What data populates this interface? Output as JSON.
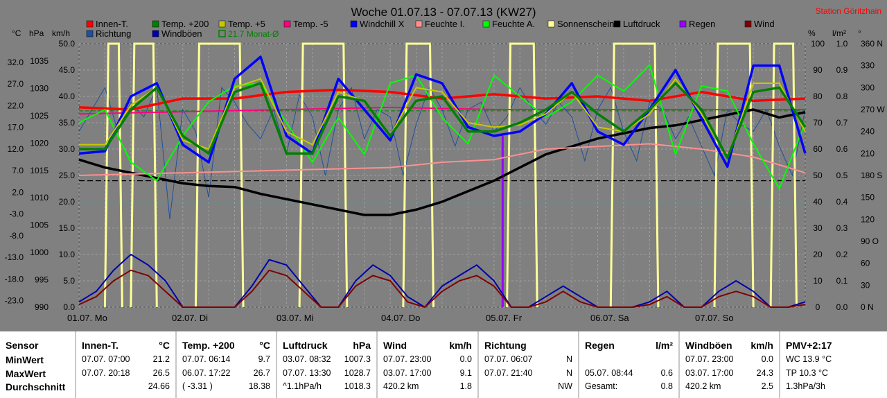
{
  "title": "Woche 01.07.13 - 07.07.13 (KW27)",
  "station": "Station Göritzhain",
  "axis_units": {
    "temp": "°C",
    "hpa": "hPa",
    "kmh": "km/h",
    "pct": "%",
    "lm2": "l/m²",
    "deg": "°"
  },
  "legend": [
    {
      "label": "Innen-T.",
      "color": "#ff0000"
    },
    {
      "label": "Temp. +200",
      "color": "#008000"
    },
    {
      "label": "Temp. +5",
      "color": "#c8c800"
    },
    {
      "label": "Temp. -5",
      "color": "#ff0080"
    },
    {
      "label": "Windchill X",
      "color": "#0000ff"
    },
    {
      "label": "Feuchte I.",
      "color": "#ff9090"
    },
    {
      "label": "Feuchte A.",
      "color": "#00ff00"
    },
    {
      "label": "Sonnenschein",
      "color": "#ffff99"
    },
    {
      "label": "Luftdruck",
      "color": "#000000"
    },
    {
      "label": "Regen",
      "color": "#9900ff"
    },
    {
      "label": "Wind",
      "color": "#800000"
    },
    {
      "label": "Richtung",
      "color": "#1f4fa0"
    },
    {
      "label": "Windböen",
      "color": "#0000aa"
    },
    {
      "label": "21.7 Monat-Ø",
      "color": "#008000"
    }
  ],
  "chart_data": {
    "type": "line",
    "title": "Woche 01.07.13 - 07.07.13 (KW27)",
    "x_labels": [
      "01.07. Mo",
      "02.07. Di",
      "03.07. Mi",
      "04.07. Do",
      "05.07. Fr",
      "06.07. Sa",
      "07.07. So"
    ],
    "x_range_hours": [
      0,
      168
    ],
    "left_axes": {
      "temp": [
        "32.0",
        "27.0",
        "22.0",
        "17.0",
        "12.0",
        "7.0",
        "2.0",
        "-3.0",
        "-8.0",
        "-13.0",
        "-18.0",
        "-23.0"
      ],
      "hpa": [
        "1035",
        "1030",
        "1025",
        "1020",
        "1015",
        "1010",
        "1005",
        "1000",
        "995",
        "990"
      ],
      "kmh": [
        "50.0",
        "45.0",
        "40.0",
        "35.0",
        "30.0",
        "25.0",
        "20.0",
        "15.0",
        "10.0",
        "5.0",
        "0.0"
      ]
    },
    "right_axes": {
      "pct": [
        "100",
        "90",
        "80",
        "70",
        "60",
        "50",
        "40",
        "30",
        "20",
        "10",
        "0"
      ],
      "lm2": [
        "1.0",
        "0.9",
        "0.8",
        "0.7",
        "0.6",
        "0.5",
        "0.4",
        "0.3",
        "0.2",
        "0.1",
        "0.0"
      ],
      "deg": [
        "360 N",
        "330",
        "300",
        "270 W",
        "240",
        "210",
        "180 S",
        "150",
        "120",
        "90 O",
        "60",
        "30",
        "0 N"
      ]
    },
    "ylim_temp": [
      -23,
      37
    ],
    "ylim_hpa": [
      990,
      1040
    ],
    "ylim_kmh": [
      0,
      50
    ],
    "ylim_deg": [
      0,
      360
    ],
    "month_avg_temp": 21.7,
    "series": [
      {
        "name": "Innen-T.",
        "color": "#ff0000",
        "axis": "temp",
        "width": 3.5,
        "hours": [
          0,
          12,
          24,
          36,
          48,
          60,
          72,
          84,
          96,
          108,
          120,
          132,
          144,
          156,
          168
        ],
        "values": [
          22.5,
          22.0,
          24.5,
          24.5,
          26.0,
          26.5,
          26.0,
          24.5,
          25.5,
          24.5,
          25.0,
          24.0,
          26.0,
          24.0,
          24.5
        ]
      },
      {
        "name": "Temp. -5",
        "color": "#ff0080",
        "axis": "temp",
        "width": 2,
        "hours": [
          0,
          24,
          48,
          72,
          96,
          120,
          144,
          168
        ],
        "values": [
          21.0,
          21.5,
          22.0,
          22.5,
          22.0,
          22.0,
          22.0,
          22.0
        ]
      },
      {
        "name": "Luftdruck",
        "color": "#000000",
        "axis": "hpa",
        "width": 3.5,
        "hours": [
          0,
          6,
          12,
          18,
          24,
          30,
          36,
          42,
          48,
          54,
          60,
          66,
          72,
          78,
          84,
          90,
          96,
          102,
          108,
          114,
          120,
          126,
          132,
          138,
          144,
          150,
          156,
          162,
          168
        ],
        "values": [
          1018.0,
          1016.5,
          1015.5,
          1014.5,
          1013.5,
          1013.0,
          1012.8,
          1011.5,
          1010.5,
          1009.5,
          1008.5,
          1007.5,
          1007.5,
          1008.5,
          1010.0,
          1012.0,
          1014.0,
          1016.5,
          1019.0,
          1020.5,
          1022.0,
          1023.0,
          1024.0,
          1024.5,
          1025.5,
          1026.5,
          1027.5,
          1026.0,
          1027.0
        ]
      },
      {
        "name": "Feuchte I.",
        "color": "#ff9090",
        "axis": "pct",
        "width": 2,
        "hours": [
          0,
          24,
          48,
          72,
          84,
          96,
          108,
          120,
          132,
          144,
          156,
          168
        ],
        "values": [
          50,
          51,
          52,
          53,
          55,
          56,
          60,
          61,
          62,
          60,
          57,
          51
        ]
      },
      {
        "name": "Feuchte A.",
        "color": "#00ff00",
        "axis": "pct",
        "width": 2,
        "hours": [
          0,
          6,
          12,
          18,
          24,
          30,
          36,
          42,
          48,
          54,
          60,
          66,
          72,
          78,
          84,
          90,
          96,
          102,
          108,
          114,
          120,
          126,
          132,
          138,
          144,
          150,
          156,
          162,
          168
        ],
        "values": [
          70,
          75,
          55,
          48,
          65,
          78,
          84,
          85,
          70,
          55,
          72,
          58,
          85,
          88,
          72,
          62,
          88,
          80,
          72,
          78,
          88,
          82,
          92,
          58,
          84,
          82,
          62,
          45,
          70
        ]
      },
      {
        "name": "Windchill X",
        "color": "#0000ff",
        "axis": "temp",
        "width": 3.5,
        "hours": [
          0,
          6,
          12,
          18,
          24,
          30,
          36,
          42,
          48,
          54,
          60,
          66,
          72,
          78,
          84,
          90,
          96,
          102,
          108,
          114,
          120,
          126,
          132,
          138,
          144,
          150,
          156,
          162,
          168
        ],
        "values": [
          12.0,
          12.5,
          25.0,
          28.0,
          14.0,
          10.0,
          29.0,
          34.0,
          16.0,
          12.0,
          29.0,
          22.0,
          15.0,
          30.0,
          28.0,
          18.0,
          16.0,
          17.0,
          21.0,
          28.0,
          17.0,
          14.0,
          22.0,
          31.0,
          20.0,
          9.0,
          32.0,
          32.0,
          12.0
        ]
      },
      {
        "name": "Temp. +5",
        "color": "#c8c800",
        "axis": "temp",
        "width": 2,
        "hours": [
          0,
          6,
          12,
          18,
          24,
          30,
          36,
          42,
          48,
          54,
          60,
          66,
          72,
          78,
          84,
          90,
          96,
          102,
          108,
          114,
          120,
          126,
          132,
          138,
          144,
          150,
          156,
          162,
          168
        ],
        "values": [
          14.0,
          14.0,
          23.0,
          27.0,
          15.0,
          13.0,
          27.0,
          29.0,
          17.0,
          14.0,
          26.0,
          24.0,
          16.0,
          27.0,
          26.0,
          19.0,
          18.0,
          18.5,
          21.0,
          26.0,
          18.0,
          17.0,
          21.0,
          29.0,
          21.0,
          11.0,
          28.0,
          28.0,
          17.0
        ]
      },
      {
        "name": "Temp. +200",
        "color": "#008000",
        "axis": "temp",
        "width": 3.5,
        "hours": [
          0,
          6,
          12,
          18,
          24,
          30,
          36,
          42,
          48,
          54,
          60,
          66,
          72,
          78,
          84,
          90,
          96,
          102,
          108,
          114,
          120,
          126,
          132,
          138,
          144,
          150,
          156,
          162,
          168
        ],
        "values": [
          13.0,
          13.0,
          22.0,
          27.0,
          16.0,
          12.0,
          26.0,
          28.0,
          12.0,
          12.0,
          25.0,
          24.0,
          16.0,
          24.0,
          25.0,
          17.0,
          17.0,
          19.0,
          22.0,
          26.0,
          21.0,
          17.0,
          22.0,
          28.0,
          22.0,
          11.0,
          26.0,
          27.0,
          18.0
        ]
      },
      {
        "name": "Windböen",
        "color": "#0000aa",
        "axis": "kmh",
        "width": 2,
        "hours": [
          0,
          4,
          8,
          12,
          16,
          20,
          24,
          28,
          32,
          36,
          40,
          44,
          48,
          52,
          56,
          60,
          64,
          68,
          72,
          76,
          80,
          84,
          88,
          92,
          96,
          100,
          104,
          108,
          112,
          116,
          120,
          124,
          128,
          132,
          136,
          140,
          144,
          148,
          152,
          156,
          160,
          164,
          168
        ],
        "values": [
          1,
          3,
          7,
          10,
          8,
          5,
          0,
          0,
          0,
          0,
          4,
          9,
          8,
          4,
          0,
          0,
          5,
          8,
          6,
          2,
          0,
          4,
          6,
          8,
          5,
          0,
          0,
          2,
          4,
          2,
          0,
          0,
          0,
          1,
          3,
          0,
          0,
          3,
          5,
          3,
          0,
          0,
          1
        ]
      },
      {
        "name": "Wind",
        "color": "#800000",
        "axis": "kmh",
        "width": 2,
        "hours": [
          0,
          4,
          8,
          12,
          16,
          20,
          24,
          28,
          32,
          36,
          40,
          44,
          48,
          52,
          56,
          60,
          64,
          68,
          72,
          76,
          80,
          84,
          88,
          92,
          96,
          100,
          104,
          108,
          112,
          116,
          120,
          124,
          128,
          132,
          136,
          140,
          144,
          148,
          152,
          156,
          160,
          164,
          168
        ],
        "values": [
          0.5,
          2,
          5,
          7,
          6,
          3,
          0,
          0,
          0,
          0,
          3,
          7,
          6,
          3,
          0,
          0,
          4,
          6,
          5,
          1,
          0,
          3,
          5,
          6,
          4,
          0,
          0,
          1,
          3,
          1,
          0,
          0,
          0,
          0.5,
          2,
          0,
          0,
          2,
          3,
          2,
          0,
          0,
          0.5
        ]
      }
    ],
    "sunshine_periods_hours": [
      [
        6,
        10
      ],
      [
        12,
        18
      ],
      [
        27,
        38
      ],
      [
        51,
        62
      ],
      [
        75,
        82
      ],
      [
        99,
        106
      ],
      [
        123,
        134
      ],
      [
        147,
        156
      ],
      [
        160,
        166
      ]
    ],
    "rain_bar": {
      "hour": 98,
      "value_lm2": 0.65
    },
    "direction_series": {
      "hours": [
        0,
        3,
        6,
        9,
        12,
        15,
        18,
        21,
        24,
        27,
        30,
        33,
        36,
        39,
        42,
        45,
        48,
        51,
        54,
        57,
        60,
        63,
        66,
        69,
        72,
        75,
        78,
        81,
        84,
        87,
        90,
        93,
        96,
        99,
        102,
        105,
        108,
        111,
        114,
        117,
        120,
        123,
        126,
        129,
        132,
        135,
        138,
        141,
        144,
        147,
        150,
        153,
        156,
        159,
        162,
        165,
        168
      ],
      "values": [
        240,
        270,
        300,
        240,
        280,
        260,
        300,
        120,
        270,
        240,
        150,
        300,
        280,
        250,
        230,
        270,
        210,
        290,
        260,
        180,
        270,
        300,
        230,
        270,
        260,
        180,
        250,
        300,
        270,
        220,
        270,
        280,
        240,
        260,
        300,
        270,
        250,
        280,
        260,
        200,
        270,
        300,
        240,
        200,
        280,
        270,
        230,
        260,
        220,
        180,
        270,
        250,
        240,
        270,
        220,
        180,
        270
      ]
    }
  },
  "stats": {
    "row_labels": [
      "MinWert",
      "MaxWert",
      "Durchschnitt"
    ],
    "columns": [
      {
        "header": "Sensor",
        "unit": "",
        "rows": [
          [
            "MinWert",
            "",
            ""
          ],
          [
            "MaxWert",
            "",
            ""
          ],
          [
            "Durchschnitt",
            "",
            ""
          ]
        ]
      },
      {
        "header": "Innen-T.",
        "unit": "°C",
        "rows": [
          [
            "07.07.  07:00",
            "",
            "21.2"
          ],
          [
            "07.07.  20:18",
            "",
            "26.5"
          ],
          [
            "",
            "",
            "24.66"
          ]
        ]
      },
      {
        "header": "Temp. +200",
        "unit": "°C",
        "rows": [
          [
            "07.07.  06:14",
            "",
            "9.7"
          ],
          [
            "06.07.  17:22",
            "",
            "26.7"
          ],
          [
            "( -3.31 )",
            "",
            "18.38"
          ]
        ]
      },
      {
        "header": "Luftdruck",
        "unit": "hPa",
        "rows": [
          [
            "03.07.  08:32",
            "",
            "1007.3"
          ],
          [
            "07.07.  13:30",
            "",
            "1028.7"
          ],
          [
            "^1.1hPa/h",
            "",
            "1018.3"
          ]
        ]
      },
      {
        "header": "Wind",
        "unit": "km/h",
        "rows": [
          [
            "07.07.  23:00",
            "",
            "0.0"
          ],
          [
            "03.07.  17:00",
            "",
            "9.1"
          ],
          [
            "420.2 km",
            "",
            "1.8"
          ]
        ]
      },
      {
        "header": "Richtung",
        "unit": "",
        "rows": [
          [
            "07.07.  06:07",
            "",
            "N"
          ],
          [
            "07.07.  21:40",
            "",
            "N"
          ],
          [
            "",
            "",
            "NW"
          ]
        ]
      },
      {
        "header": "Regen",
        "unit": "l/m²",
        "rows": [
          [
            "",
            "",
            ""
          ],
          [
            "05.07.  08:44",
            "",
            "0.6"
          ],
          [
            "Gesamt:",
            "",
            "0.8"
          ]
        ]
      },
      {
        "header": "Windböen",
        "unit": "km/h",
        "rows": [
          [
            "07.07.  23:00",
            "",
            "0.0"
          ],
          [
            "03.07.  17:00",
            "",
            "24.3"
          ],
          [
            "420.2 km",
            "",
            "2.5"
          ]
        ]
      },
      {
        "header": "PMV+2:17",
        "unit": "",
        "rows": [
          [
            "WC 13.9 °C",
            "",
            ""
          ],
          [
            "TP 10.3 °C",
            "",
            ""
          ],
          [
            "1.3hPa/3h",
            "",
            ""
          ]
        ]
      }
    ]
  }
}
